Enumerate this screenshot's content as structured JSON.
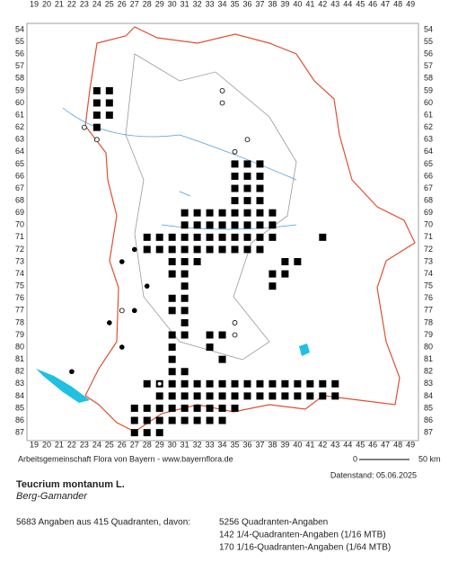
{
  "map": {
    "columns": [
      19,
      20,
      21,
      22,
      23,
      24,
      25,
      26,
      27,
      28,
      29,
      30,
      31,
      32,
      33,
      34,
      35,
      36,
      37,
      38,
      39,
      40,
      41,
      42,
      43,
      44,
      45,
      46,
      47,
      48,
      49
    ],
    "rows": [
      54,
      55,
      56,
      57,
      58,
      59,
      60,
      61,
      62,
      63,
      64,
      65,
      66,
      67,
      68,
      69,
      70,
      71,
      72,
      73,
      74,
      75,
      76,
      77,
      78,
      79,
      80,
      81,
      82,
      83,
      84,
      85,
      86,
      87
    ],
    "credit": "Arbeitsgemeinschaft Flora von Bayern - www.bayernflora.de",
    "scale_start": "0",
    "scale_end": "50 km",
    "date": "Datenstand: 05.06.2025"
  },
  "species": {
    "name": "Teucrium montanum L.",
    "common_name": "Berg-Gamander"
  },
  "stats": {
    "summary": "5683 Angaben aus 415 Quadranten, davon:",
    "lines": [
      "5256 Quadranten-Angaben",
      "142 1/4-Quadranten-Angaben (1/16 MTB)",
      "170 1/16-Quadranten-Angaben (1/64 MTB)"
    ]
  }
}
